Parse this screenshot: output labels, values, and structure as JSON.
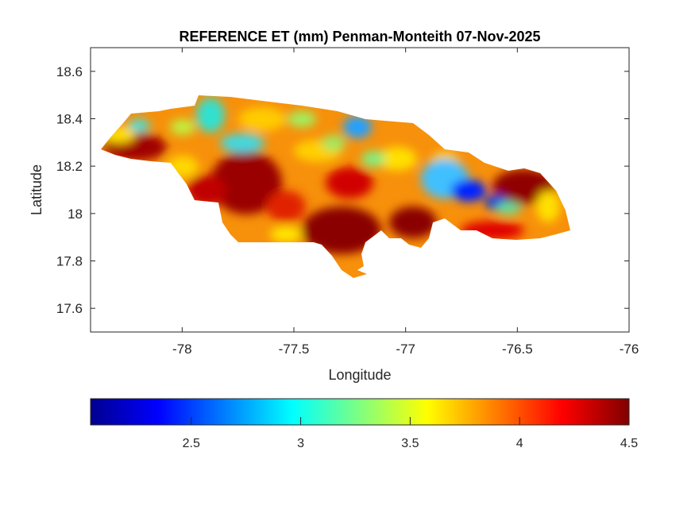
{
  "chart_data": {
    "type": "heatmap",
    "title": "REFERENCE ET (mm) Penman-Monteith 07-Nov-2025",
    "xlabel": "Longitude",
    "ylabel": "Latitude",
    "xlim": [
      -78.41,
      -76
    ],
    "ylim": [
      17.5,
      18.7
    ],
    "xticks": [
      -78,
      -77.5,
      -77,
      -76.5,
      -76
    ],
    "xtick_labels": [
      "-78",
      "-77.5",
      "-77",
      "-76.5",
      "-76"
    ],
    "yticks": [
      17.6,
      17.8,
      18,
      18.2,
      18.4,
      18.6
    ],
    "ytick_labels": [
      "17.6",
      "17.8",
      "18",
      "18.2",
      "18.4",
      "18.6"
    ],
    "grid": false,
    "colormap": "jet",
    "colorbar": {
      "orientation": "horizontal",
      "placement": "bottom",
      "range": [
        2.04,
        4.5
      ],
      "ticks": [
        2.5,
        3,
        3.5,
        4,
        4.5
      ],
      "tick_labels": [
        "2.5",
        "3",
        "3.5",
        "4",
        "4.5"
      ]
    }
  }
}
